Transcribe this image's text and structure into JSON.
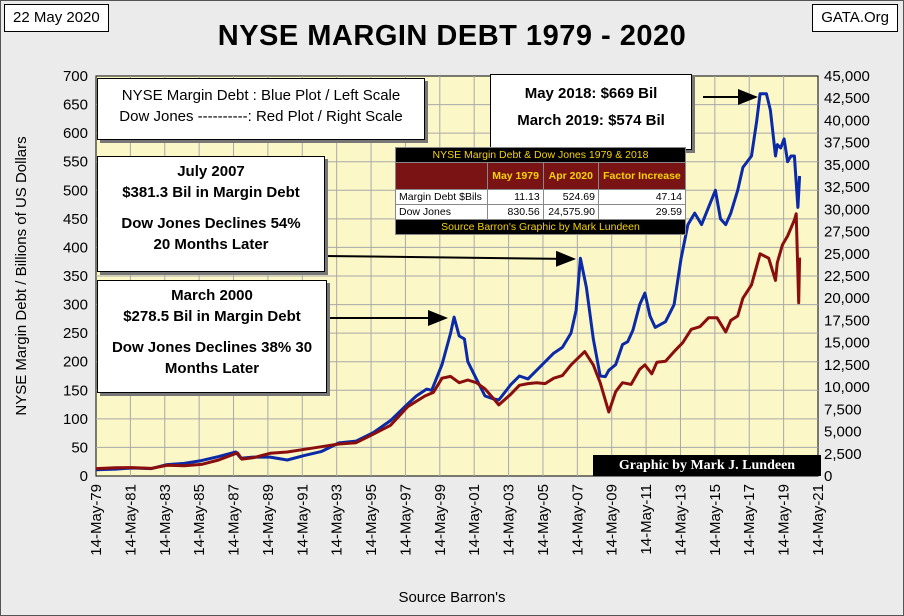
{
  "header": {
    "date": "22 May 2020",
    "source": "GATA.Org",
    "title": "NYSE MARGIN DEBT 1979 - 2020"
  },
  "legend": {
    "line1": "NYSE Margin Debt : Blue Plot / Left Scale",
    "line2": "Dow Jones ----------: Red Plot / Right Scale"
  },
  "annotations": {
    "may2018": "May 2018: $669 Bil",
    "march2019": "March 2019: $574 Bil",
    "july2007": {
      "title": "July 2007",
      "amount": "$381.3 Bil in Margin Debt",
      "decline1": "Dow Jones Declines 54%",
      "decline2": "20 Months Later"
    },
    "march2000": {
      "title": "March 2000",
      "amount": "$278.5 Bil in Margin Debt",
      "decline1": "Dow Jones Declines 38% 30",
      "decline2": "Months Later"
    }
  },
  "table": {
    "title": "NYSE Margin Debt & Dow Jones 1979 & 2018",
    "col1": "May 1979",
    "col2": "Apr 2020",
    "col3": "Factor Increase",
    "rows": [
      {
        "label": "Margin Debt $Bils",
        "v1": "11.13",
        "v2": "524.69",
        "v3": "47.14"
      },
      {
        "label": "Dow Jones",
        "v1": "830.56",
        "v2": "24,575.90",
        "v3": "29.59"
      }
    ],
    "footer": "Source Barron's Graphic by Mark Lundeen"
  },
  "credit": "Graphic by Mark J. Lundeen",
  "colors": {
    "plot_bg": "#fbf7c6",
    "margin": "#0b2aa8",
    "dow": "#8b0e0e",
    "grid": "#a9a9a9"
  },
  "chart_data": {
    "type": "line",
    "title": "NYSE MARGIN DEBT 1979 - 2020",
    "xlabel": "Source Barron's",
    "ylabel": "NYSE Margin Debt  /  Billions of  US  Dollars",
    "xlim": [
      1979.37,
      2021.37
    ],
    "ylim_left": [
      0,
      700
    ],
    "ylim_right": [
      0,
      45000
    ],
    "x_ticks": [
      "14-May-79",
      "14-May-81",
      "14-May-83",
      "14-May-85",
      "14-May-87",
      "14-May-89",
      "14-May-91",
      "14-May-93",
      "14-May-95",
      "14-May-97",
      "14-May-99",
      "14-May-01",
      "14-May-03",
      "14-May-05",
      "14-May-07",
      "14-May-09",
      "14-May-11",
      "14-May-13",
      "14-May-15",
      "14-May-17",
      "14-May-19",
      "14-May-21"
    ],
    "y_left_ticks": [
      "0",
      "50",
      "100",
      "150",
      "200",
      "250",
      "300",
      "350",
      "400",
      "450",
      "500",
      "550",
      "600",
      "650",
      "700"
    ],
    "y_right_ticks": [
      "0",
      "2,500",
      "5,000",
      "7,500",
      "10,000",
      "12,500",
      "15,000",
      "17,500",
      "20,000",
      "22,500",
      "25,000",
      "27,500",
      "30,000",
      "32,500",
      "35,000",
      "37,500",
      "40,000",
      "42,500",
      "45,000"
    ],
    "series": [
      {
        "name": "NYSE Margin Debt",
        "axis": "left",
        "x": [
          1979.37,
          1980.5,
          1981.5,
          1982.6,
          1983.5,
          1984.5,
          1985.5,
          1986.5,
          1987.5,
          1987.8,
          1988.5,
          1989.5,
          1990.5,
          1991.5,
          1992.5,
          1993.5,
          1994.5,
          1995.5,
          1996.5,
          1997.5,
          1998.0,
          1998.6,
          1998.9,
          1999.5,
          2000.0,
          2000.2,
          2000.5,
          2000.8,
          2001.0,
          2001.5,
          2002.0,
          2002.5,
          2002.8,
          2003.5,
          2004.0,
          2004.5,
          2005.0,
          2005.5,
          2006.0,
          2006.5,
          2007.0,
          2007.3,
          2007.55,
          2007.9,
          2008.3,
          2008.7,
          2009.0,
          2009.2,
          2009.6,
          2010.0,
          2010.3,
          2010.6,
          2011.0,
          2011.3,
          2011.6,
          2011.9,
          2012.5,
          2013.0,
          2013.4,
          2013.8,
          2014.2,
          2014.6,
          2015.0,
          2015.4,
          2015.7,
          2016.0,
          2016.3,
          2016.7,
          2017.0,
          2017.5,
          2017.8,
          2018.0,
          2018.37,
          2018.6,
          2018.9,
          2019.0,
          2019.2,
          2019.4,
          2019.6,
          2019.8,
          2020.0,
          2020.2,
          2020.3
        ],
        "values": [
          11,
          12,
          14,
          13,
          20,
          22,
          27,
          34,
          42,
          31,
          33,
          33,
          28,
          36,
          43,
          58,
          61,
          76,
          97,
          126,
          140,
          152,
          150,
          195,
          250,
          278,
          245,
          240,
          200,
          170,
          140,
          135,
          133,
          160,
          175,
          170,
          185,
          200,
          215,
          225,
          250,
          290,
          381,
          330,
          240,
          175,
          174,
          185,
          195,
          230,
          235,
          255,
          300,
          320,
          280,
          260,
          270,
          300,
          380,
          440,
          460,
          440,
          470,
          500,
          450,
          440,
          460,
          500,
          540,
          560,
          620,
          669,
          669,
          640,
          560,
          580,
          574,
          590,
          550,
          560,
          560,
          470,
          525
        ]
      },
      {
        "name": "Dow Jones",
        "axis": "right",
        "x": [
          1979.37,
          1980.5,
          1981.5,
          1982.6,
          1983.5,
          1984.5,
          1985.5,
          1986.5,
          1987.6,
          1987.85,
          1988.5,
          1989.5,
          1990.5,
          1991.5,
          1992.5,
          1993.5,
          1994.5,
          1995.5,
          1996.5,
          1997.5,
          1998.5,
          1999.0,
          1999.5,
          2000.0,
          2000.5,
          2001.0,
          2001.5,
          2002.0,
          2002.5,
          2002.8,
          2003.5,
          2004.0,
          2004.5,
          2005.0,
          2005.5,
          2006.0,
          2006.5,
          2007.0,
          2007.8,
          2008.3,
          2008.7,
          2009.2,
          2009.6,
          2010.0,
          2010.5,
          2011.0,
          2011.3,
          2011.7,
          2012.0,
          2012.5,
          2013.0,
          2013.5,
          2014.0,
          2014.5,
          2015.0,
          2015.5,
          2016.0,
          2016.3,
          2016.7,
          2017.0,
          2017.5,
          2018.0,
          2018.5,
          2018.9,
          2019.0,
          2019.3,
          2019.6,
          2020.0,
          2020.1,
          2020.25,
          2020.3
        ],
        "values": [
          830,
          930,
          950,
          850,
          1200,
          1150,
          1300,
          1800,
          2600,
          1900,
          2050,
          2550,
          2700,
          3000,
          3300,
          3600,
          3750,
          4700,
          5700,
          7800,
          9000,
          9400,
          11000,
          11200,
          10500,
          10800,
          10500,
          9800,
          8700,
          8000,
          9200,
          10200,
          10400,
          10500,
          10400,
          11000,
          11300,
          12500,
          14000,
          12500,
          10500,
          7200,
          9500,
          10500,
          10300,
          12000,
          12500,
          11500,
          12800,
          12900,
          14000,
          15000,
          16500,
          16800,
          17800,
          17800,
          16200,
          17500,
          18000,
          20000,
          21500,
          25000,
          24500,
          22000,
          24000,
          26000,
          27000,
          28800,
          29500,
          19500,
          24575
        ]
      }
    ]
  }
}
